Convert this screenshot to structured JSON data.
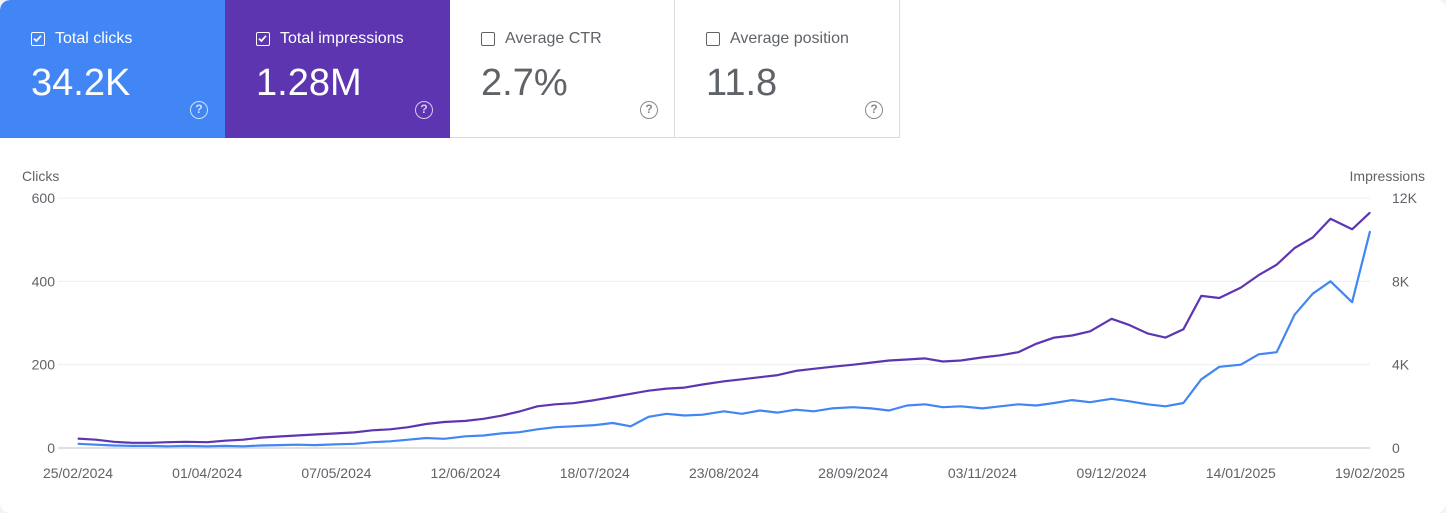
{
  "metrics": [
    {
      "id": "clicks",
      "label": "Total clicks",
      "value": "34.2K",
      "checked": true,
      "help": "?"
    },
    {
      "id": "impr",
      "label": "Total impressions",
      "value": "1.28M",
      "checked": true,
      "help": "?"
    },
    {
      "id": "ctr",
      "label": "Average CTR",
      "value": "2.7%",
      "checked": false,
      "help": "?"
    },
    {
      "id": "pos",
      "label": "Average position",
      "value": "11.8",
      "checked": false,
      "help": "?"
    }
  ],
  "colors": {
    "clicks": "#4285f4",
    "impressions": "#5e35b1",
    "grid": "#eceff1",
    "axis_text": "#5f6368"
  },
  "chart_data": {
    "type": "line",
    "ylabel_left": "Clicks",
    "ylabel_right": "Impressions",
    "x_start": "25/02/2024",
    "x_end": "19/02/2025",
    "x_ticks": [
      "25/02/2024",
      "01/04/2024",
      "07/05/2024",
      "12/06/2024",
      "18/07/2024",
      "23/08/2024",
      "28/09/2024",
      "03/11/2024",
      "09/12/2024",
      "14/01/2025",
      "19/02/2025"
    ],
    "y_left": {
      "min": 0,
      "max": 600,
      "ticks": [
        "0",
        "200",
        "400",
        "600"
      ]
    },
    "y_right": {
      "min": 0,
      "max": 12000,
      "ticks": [
        "0",
        "4K",
        "8K",
        "12K"
      ]
    },
    "series": [
      {
        "name": "Clicks",
        "axis": "left",
        "color": "#4285f4",
        "points": [
          [
            "25/02/2024",
            10
          ],
          [
            "01/03/2024",
            8
          ],
          [
            "06/03/2024",
            6
          ],
          [
            "11/03/2024",
            5
          ],
          [
            "16/03/2024",
            5
          ],
          [
            "21/03/2024",
            4
          ],
          [
            "26/03/2024",
            5
          ],
          [
            "01/04/2024",
            4
          ],
          [
            "06/04/2024",
            5
          ],
          [
            "11/04/2024",
            4
          ],
          [
            "16/04/2024",
            6
          ],
          [
            "21/04/2024",
            7
          ],
          [
            "26/04/2024",
            8
          ],
          [
            "01/05/2024",
            7
          ],
          [
            "07/05/2024",
            9
          ],
          [
            "12/05/2024",
            10
          ],
          [
            "17/05/2024",
            14
          ],
          [
            "22/05/2024",
            16
          ],
          [
            "27/05/2024",
            20
          ],
          [
            "01/06/2024",
            24
          ],
          [
            "06/06/2024",
            22
          ],
          [
            "12/06/2024",
            28
          ],
          [
            "17/06/2024",
            30
          ],
          [
            "22/06/2024",
            35
          ],
          [
            "27/06/2024",
            38
          ],
          [
            "02/07/2024",
            45
          ],
          [
            "07/07/2024",
            50
          ],
          [
            "12/07/2024",
            52
          ],
          [
            "18/07/2024",
            55
          ],
          [
            "23/07/2024",
            60
          ],
          [
            "28/07/2024",
            52
          ],
          [
            "02/08/2024",
            75
          ],
          [
            "07/08/2024",
            82
          ],
          [
            "12/08/2024",
            78
          ],
          [
            "17/08/2024",
            80
          ],
          [
            "23/08/2024",
            88
          ],
          [
            "28/08/2024",
            82
          ],
          [
            "02/09/2024",
            90
          ],
          [
            "07/09/2024",
            85
          ],
          [
            "12/09/2024",
            92
          ],
          [
            "17/09/2024",
            88
          ],
          [
            "22/09/2024",
            95
          ],
          [
            "28/09/2024",
            98
          ],
          [
            "03/10/2024",
            95
          ],
          [
            "08/10/2024",
            90
          ],
          [
            "13/10/2024",
            102
          ],
          [
            "18/10/2024",
            105
          ],
          [
            "23/10/2024",
            98
          ],
          [
            "28/10/2024",
            100
          ],
          [
            "03/11/2024",
            95
          ],
          [
            "08/11/2024",
            100
          ],
          [
            "13/11/2024",
            105
          ],
          [
            "18/11/2024",
            102
          ],
          [
            "23/11/2024",
            108
          ],
          [
            "28/11/2024",
            115
          ],
          [
            "03/12/2024",
            110
          ],
          [
            "09/12/2024",
            118
          ],
          [
            "14/12/2024",
            112
          ],
          [
            "19/12/2024",
            105
          ],
          [
            "24/12/2024",
            100
          ],
          [
            "29/12/2024",
            108
          ],
          [
            "03/01/2025",
            165
          ],
          [
            "08/01/2025",
            195
          ],
          [
            "14/01/2025",
            200
          ],
          [
            "19/01/2025",
            225
          ],
          [
            "24/01/2025",
            230
          ],
          [
            "29/01/2025",
            320
          ],
          [
            "03/02/2025",
            370
          ],
          [
            "08/02/2025",
            400
          ],
          [
            "14/02/2025",
            350
          ],
          [
            "19/02/2025",
            520
          ]
        ]
      },
      {
        "name": "Impressions",
        "axis": "right",
        "color": "#5e35b1",
        "points": [
          [
            "25/02/2024",
            450
          ],
          [
            "01/03/2024",
            400
          ],
          [
            "06/03/2024",
            300
          ],
          [
            "11/03/2024",
            250
          ],
          [
            "16/03/2024",
            250
          ],
          [
            "21/03/2024",
            280
          ],
          [
            "26/03/2024",
            300
          ],
          [
            "01/04/2024",
            280
          ],
          [
            "06/04/2024",
            350
          ],
          [
            "11/04/2024",
            400
          ],
          [
            "16/04/2024",
            500
          ],
          [
            "21/04/2024",
            550
          ],
          [
            "26/04/2024",
            600
          ],
          [
            "01/05/2024",
            650
          ],
          [
            "07/05/2024",
            700
          ],
          [
            "12/05/2024",
            750
          ],
          [
            "17/05/2024",
            850
          ],
          [
            "22/05/2024",
            900
          ],
          [
            "27/05/2024",
            1000
          ],
          [
            "01/06/2024",
            1150
          ],
          [
            "06/06/2024",
            1250
          ],
          [
            "12/06/2024",
            1300
          ],
          [
            "17/06/2024",
            1400
          ],
          [
            "22/06/2024",
            1550
          ],
          [
            "27/06/2024",
            1750
          ],
          [
            "02/07/2024",
            2000
          ],
          [
            "07/07/2024",
            2100
          ],
          [
            "12/07/2024",
            2150
          ],
          [
            "18/07/2024",
            2300
          ],
          [
            "23/07/2024",
            2450
          ],
          [
            "28/07/2024",
            2600
          ],
          [
            "02/08/2024",
            2750
          ],
          [
            "07/08/2024",
            2850
          ],
          [
            "12/08/2024",
            2900
          ],
          [
            "17/08/2024",
            3050
          ],
          [
            "23/08/2024",
            3200
          ],
          [
            "28/08/2024",
            3300
          ],
          [
            "02/09/2024",
            3400
          ],
          [
            "07/09/2024",
            3500
          ],
          [
            "12/09/2024",
            3700
          ],
          [
            "17/09/2024",
            3800
          ],
          [
            "22/09/2024",
            3900
          ],
          [
            "28/09/2024",
            4000
          ],
          [
            "03/10/2024",
            4100
          ],
          [
            "08/10/2024",
            4200
          ],
          [
            "13/10/2024",
            4250
          ],
          [
            "18/10/2024",
            4300
          ],
          [
            "23/10/2024",
            4150
          ],
          [
            "28/10/2024",
            4200
          ],
          [
            "03/11/2024",
            4350
          ],
          [
            "08/11/2024",
            4450
          ],
          [
            "13/11/2024",
            4600
          ],
          [
            "18/11/2024",
            5000
          ],
          [
            "23/11/2024",
            5300
          ],
          [
            "28/11/2024",
            5400
          ],
          [
            "03/12/2024",
            5600
          ],
          [
            "09/12/2024",
            6200
          ],
          [
            "14/12/2024",
            5900
          ],
          [
            "19/12/2024",
            5500
          ],
          [
            "24/12/2024",
            5300
          ],
          [
            "29/12/2024",
            5700
          ],
          [
            "03/01/2025",
            7300
          ],
          [
            "08/01/2025",
            7200
          ],
          [
            "14/01/2025",
            7700
          ],
          [
            "19/01/2025",
            8300
          ],
          [
            "24/01/2025",
            8800
          ],
          [
            "29/01/2025",
            9600
          ],
          [
            "03/02/2025",
            10100
          ],
          [
            "08/02/2025",
            11000
          ],
          [
            "14/02/2025",
            10500
          ],
          [
            "19/02/2025",
            11300
          ]
        ]
      }
    ]
  }
}
